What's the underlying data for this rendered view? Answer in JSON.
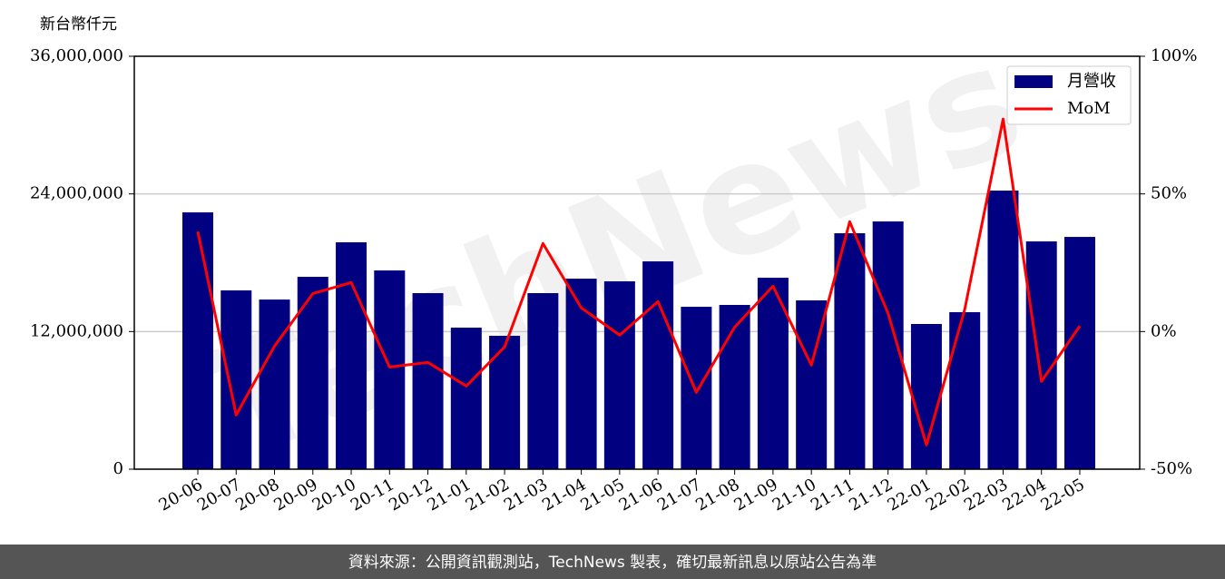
{
  "chart_data": {
    "type": "bar-line",
    "y_label": "新台幣仟元",
    "watermark": "TechNews",
    "footer": "資料來源：公開資訊觀測站，TechNews 製表，確切最新訊息以原站公告為準",
    "categories": [
      "20-06",
      "20-07",
      "20-08",
      "20-09",
      "20-10",
      "20-11",
      "20-12",
      "21-01",
      "21-02",
      "21-03",
      "21-04",
      "21-05",
      "21-06",
      "21-07",
      "21-08",
      "21-09",
      "21-10",
      "21-11",
      "21-12",
      "22-01",
      "22-02",
      "22-03",
      "22-04",
      "22-05"
    ],
    "series": [
      {
        "name": "月營收",
        "type": "bar",
        "color": "#000080",
        "values": [
          22390000,
          15590000,
          14790000,
          16770000,
          19780000,
          17330000,
          15350000,
          12340000,
          11630000,
          15350000,
          16610000,
          16380000,
          18120000,
          14160000,
          14320000,
          16690000,
          14720000,
          20570000,
          21600000,
          12660000,
          13690000,
          24290000,
          19860000,
          20250000
        ]
      },
      {
        "name": "MoM",
        "type": "line",
        "axis": "y2",
        "color": "#ff0000",
        "values": [
          36.3,
          -30.3,
          -5.3,
          13.8,
          17.8,
          -12.9,
          -11.2,
          -19.8,
          -5.6,
          32.0,
          8.6,
          -1.3,
          10.9,
          -22.1,
          1.6,
          16.5,
          -12.2,
          39.9,
          6.6,
          -41.2,
          8.1,
          77.2,
          -18.1,
          2.0
        ]
      }
    ],
    "ylim": [
      0,
      36000000
    ],
    "yticks": [
      0,
      {
        "value": 12000000,
        "label": "12,000,000"
      },
      {
        "value": 24000000,
        "label": "24,000,000"
      },
      {
        "value": 36000000,
        "label": "36,000,000"
      }
    ],
    "y2lim": [
      -50,
      100
    ],
    "y2ticks": [
      {
        "value": -50,
        "label": "-50%"
      },
      {
        "value": 0,
        "label": "0%"
      },
      {
        "value": 50,
        "label": "50%"
      },
      {
        "value": 100,
        "label": "100%"
      }
    ],
    "grid": true,
    "legend": "upper right"
  }
}
